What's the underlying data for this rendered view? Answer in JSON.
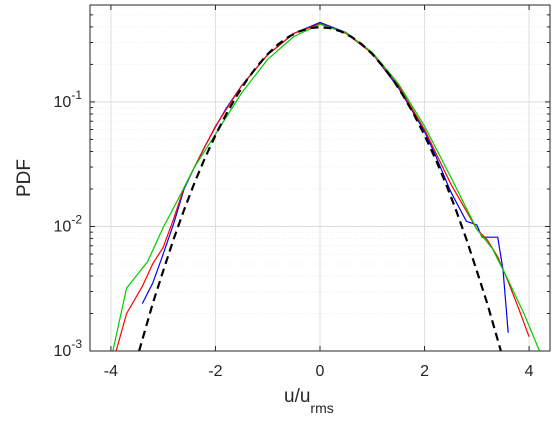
{
  "chart_data": {
    "type": "line",
    "title": "",
    "xlabel_main": "u/u",
    "xlabel_sub": "rms",
    "ylabel": "PDF",
    "xlim": [
      -4.4,
      4.4
    ],
    "ylim": [
      0.001,
      0.6
    ],
    "yscale": "log",
    "grid": true,
    "xticks": [
      {
        "value": -4,
        "label": "-4"
      },
      {
        "value": -2,
        "label": "-2"
      },
      {
        "value": 0,
        "label": "0"
      },
      {
        "value": 2,
        "label": "2"
      },
      {
        "value": 4,
        "label": "4"
      }
    ],
    "yticks": [
      {
        "value": 0.001,
        "base": "10",
        "exp": "-3"
      },
      {
        "value": 0.01,
        "base": "10",
        "exp": "-2"
      },
      {
        "value": 0.1,
        "base": "10",
        "exp": "-1"
      }
    ],
    "series": [
      {
        "color": "#0000ff",
        "dash": "solid",
        "x": [
          -3.4,
          -3.2,
          -3.0,
          -2.8,
          -2.6,
          -2.4,
          -2.2,
          -2.0,
          -1.8,
          -1.5,
          -1.0,
          -0.5,
          0.0,
          0.5,
          1.0,
          1.5,
          1.8,
          2.0,
          2.2,
          2.5,
          2.8,
          3.0,
          3.1,
          3.4,
          3.5,
          3.6
        ],
        "y": [
          0.0024,
          0.0035,
          0.006,
          0.0105,
          0.02,
          0.03,
          0.044,
          0.063,
          0.088,
          0.135,
          0.24,
          0.355,
          0.435,
          0.36,
          0.245,
          0.13,
          0.08,
          0.058,
          0.038,
          0.019,
          0.011,
          0.0103,
          0.0082,
          0.0082,
          0.0045,
          0.0014
        ]
      },
      {
        "color": "#ff0000",
        "dash": "solid",
        "x": [
          -3.9,
          -3.7,
          -3.4,
          -3.2,
          -3.0,
          -2.8,
          -2.6,
          -2.4,
          -2.0,
          -1.5,
          -1.0,
          -0.5,
          0.0,
          0.5,
          1.0,
          1.5,
          2.0,
          2.5,
          3.0,
          3.2,
          3.4,
          3.6,
          3.8,
          4.0
        ],
        "y": [
          0.001,
          0.002,
          0.0033,
          0.005,
          0.0068,
          0.0115,
          0.0205,
          0.03,
          0.064,
          0.135,
          0.24,
          0.355,
          0.425,
          0.355,
          0.245,
          0.135,
          0.06,
          0.022,
          0.0095,
          0.0078,
          0.0057,
          0.0036,
          0.0022,
          0.0013
        ]
      },
      {
        "color": "#00cc00",
        "dash": "solid",
        "x": [
          -4.0,
          -3.7,
          -3.3,
          -3.0,
          -2.7,
          -2.4,
          -2.0,
          -1.5,
          -1.0,
          -0.5,
          0.0,
          0.5,
          1.0,
          1.5,
          2.0,
          2.5,
          3.0,
          3.3,
          3.6,
          3.9,
          4.2
        ],
        "y": [
          0.00085,
          0.0032,
          0.0052,
          0.0098,
          0.017,
          0.03,
          0.055,
          0.118,
          0.22,
          0.335,
          0.42,
          0.36,
          0.25,
          0.14,
          0.064,
          0.025,
          0.0095,
          0.0066,
          0.0037,
          0.002,
          0.001
        ]
      },
      {
        "color": "#000000",
        "dash": "dashed",
        "x": [
          -3.46,
          -3.2,
          -3.0,
          -2.8,
          -2.6,
          -2.4,
          -2.2,
          -2.0,
          -1.8,
          -1.6,
          -1.4,
          -1.2,
          -1.0,
          -0.8,
          -0.6,
          -0.4,
          -0.2,
          0.0,
          0.2,
          0.4,
          0.6,
          0.8,
          1.0,
          1.2,
          1.4,
          1.6,
          1.8,
          2.0,
          2.2,
          2.4,
          2.6,
          2.8,
          3.0,
          3.2,
          3.46
        ],
        "y": [
          0.001,
          0.0024,
          0.0044,
          0.0079,
          0.0136,
          0.0224,
          0.0355,
          0.054,
          0.079,
          0.111,
          0.15,
          0.194,
          0.242,
          0.29,
          0.333,
          0.368,
          0.391,
          0.399,
          0.391,
          0.368,
          0.333,
          0.29,
          0.242,
          0.194,
          0.15,
          0.111,
          0.079,
          0.054,
          0.0355,
          0.0224,
          0.0136,
          0.0079,
          0.0044,
          0.0024,
          0.001
        ]
      }
    ]
  }
}
